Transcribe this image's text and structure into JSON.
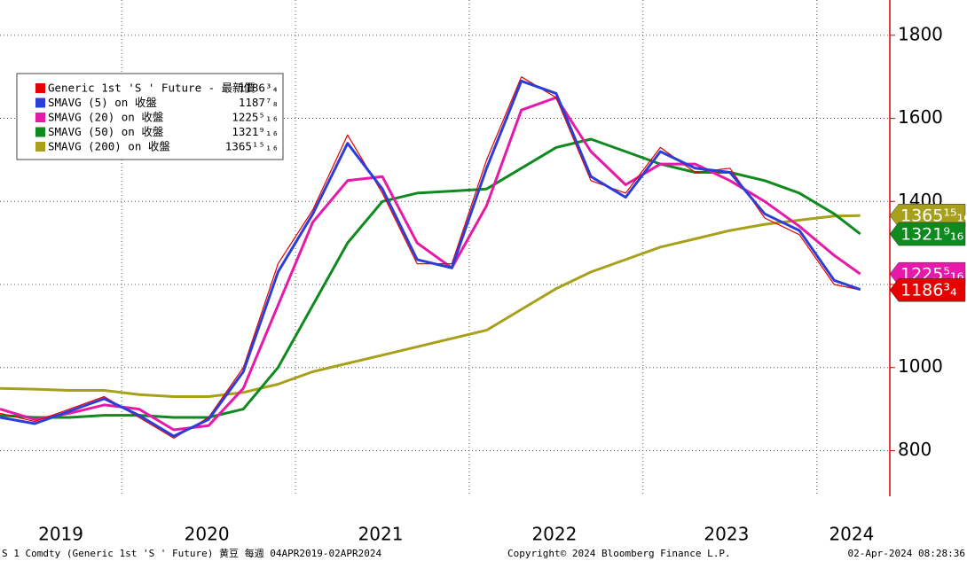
{
  "chart_data": {
    "type": "line",
    "x": [
      2019.3,
      2019.5,
      2019.7,
      2019.9,
      2020.1,
      2020.3,
      2020.5,
      2020.7,
      2020.9,
      2021.1,
      2021.3,
      2021.5,
      2021.7,
      2021.9,
      2022.1,
      2022.3,
      2022.5,
      2022.7,
      2022.9,
      2023.1,
      2023.3,
      2023.5,
      2023.7,
      2023.9,
      2024.1,
      2024.25
    ],
    "series": [
      {
        "name": "Generic 1st 'S ' Future - 最新價",
        "color": "#e60000",
        "values": [
          890,
          870,
          900,
          930,
          880,
          830,
          880,
          1000,
          1250,
          1380,
          1560,
          1420,
          1250,
          1250,
          1500,
          1700,
          1650,
          1450,
          1420,
          1530,
          1470,
          1480,
          1360,
          1320,
          1200,
          1186.75
        ],
        "value_labels": [
          "1186³₄"
        ]
      },
      {
        "name": "SMAVG (5)  on 收盤",
        "color": "#2b3fd8",
        "values": [
          880,
          865,
          895,
          925,
          885,
          835,
          875,
          990,
          1230,
          1370,
          1540,
          1430,
          1260,
          1240,
          1480,
          1690,
          1660,
          1460,
          1410,
          1520,
          1480,
          1470,
          1370,
          1330,
          1210,
          1187.875
        ],
        "value_labels": [
          "1187⁷₈"
        ]
      },
      {
        "name": "SMAVG (20)  on 收盤",
        "color": "#e619a8",
        "values": [
          900,
          875,
          890,
          910,
          900,
          850,
          860,
          950,
          1150,
          1350,
          1450,
          1460,
          1300,
          1240,
          1390,
          1620,
          1650,
          1520,
          1440,
          1490,
          1490,
          1450,
          1400,
          1340,
          1270,
          1225.3125
        ],
        "value_labels": [
          "1225⁵₁₆"
        ]
      },
      {
        "name": "SMAVG (50)  on 收盤",
        "color": "#0e8a1e",
        "values": [
          885,
          880,
          880,
          885,
          885,
          880,
          880,
          900,
          1000,
          1150,
          1300,
          1400,
          1420,
          1425,
          1430,
          1480,
          1530,
          1550,
          1520,
          1490,
          1470,
          1470,
          1450,
          1420,
          1370,
          1321.5625
        ],
        "value_labels": [
          "1321⁹₁₆"
        ]
      },
      {
        "name": "SMAVG (200)  on 收盤",
        "color": "#a8a01a",
        "values": [
          950,
          948,
          945,
          945,
          935,
          930,
          930,
          940,
          960,
          990,
          1010,
          1030,
          1050,
          1070,
          1090,
          1140,
          1190,
          1230,
          1260,
          1290,
          1310,
          1330,
          1345,
          1355,
          1365,
          1365.9375
        ],
        "value_labels": [
          "1365¹⁵₁₆"
        ]
      }
    ],
    "xlim": [
      2019.3,
      2024.42
    ],
    "xticks": [
      {
        "value": 2019.65,
        "label": "2019"
      },
      {
        "value": 2020.49,
        "label": "2020"
      },
      {
        "value": 2021.49,
        "label": "2021"
      },
      {
        "value": 2022.49,
        "label": "2022"
      },
      {
        "value": 2023.48,
        "label": "2023"
      },
      {
        "value": 2024.2,
        "label": "2024"
      }
    ],
    "xgrid": [
      2020,
      2021,
      2022,
      2023,
      2024
    ],
    "ylim": [
      690,
      1885
    ],
    "yticks": [
      800,
      1000,
      1200,
      1400,
      1600,
      1800
    ],
    "grid": true,
    "legend": "upper left",
    "footer": {
      "left": "S 1 Comdty (Generic 1st 'S ' Future) 黄豆  每週 04APR2019-02APR2024",
      "center": "Copyright© 2024 Bloomberg Finance L.P.",
      "right": "02-Apr-2024 08:28:36"
    }
  }
}
